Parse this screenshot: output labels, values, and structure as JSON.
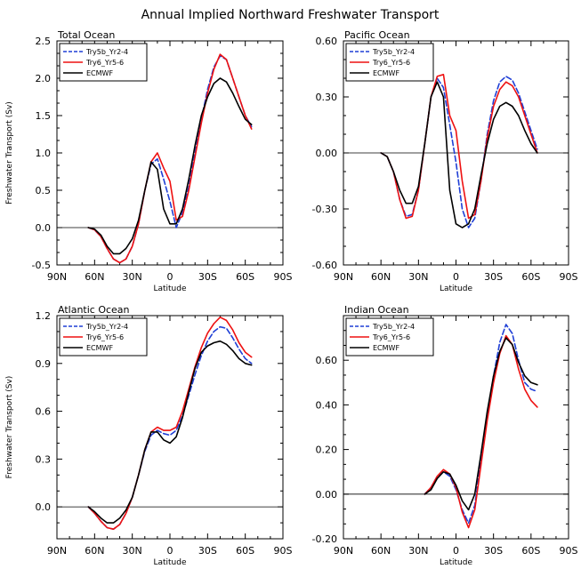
{
  "title": "Annual Implied Northward Freshwater Transport",
  "colors": {
    "Try5b_Yr2-4": "#1f3fd6",
    "Try6_Yr5-6": "#ee1111",
    "ECMWF": "#000000"
  },
  "chart_data": [
    {
      "type": "line",
      "title": "Total Ocean",
      "xlabel": "Latitude",
      "ylabel": "Freshwater Transport (Sv)",
      "xlim": [
        -90,
        90
      ],
      "ylim": [
        -0.5,
        2.5
      ],
      "x_ticks": [
        -90,
        -60,
        -30,
        0,
        30,
        60,
        90
      ],
      "x_tick_labels": [
        "90N",
        "60N",
        "30N",
        "0",
        "30S",
        "60S",
        "90S"
      ],
      "y_ticks": [
        -0.5,
        0.0,
        0.5,
        1.0,
        1.5,
        2.0,
        2.5
      ],
      "y_tick_labels": [
        "-0.5",
        "0.0",
        "0.5",
        "1.0",
        "1.5",
        "2.0",
        "2.5"
      ],
      "legend": [
        "Try5b_Yr2-4",
        "Try6_Yr5-6",
        "ECMWF"
      ],
      "series": [
        {
          "name": "Try5b_Yr2-4",
          "x": [
            -65,
            -60,
            -55,
            -50,
            -45,
            -40,
            -35,
            -30,
            -25,
            -20,
            -15,
            -10,
            -5,
            0,
            5,
            10,
            15,
            20,
            25,
            30,
            35,
            40,
            45,
            50,
            55,
            60,
            65
          ],
          "y": [
            0.0,
            -0.03,
            -0.12,
            -0.28,
            -0.42,
            -0.47,
            -0.42,
            -0.25,
            0.05,
            0.5,
            0.85,
            0.92,
            0.65,
            0.35,
            0.0,
            0.2,
            0.55,
            1.0,
            1.45,
            1.85,
            2.15,
            2.3,
            2.25,
            2.0,
            1.75,
            1.5,
            1.35
          ]
        },
        {
          "name": "Try6_Yr5-6",
          "x": [
            -65,
            -60,
            -55,
            -50,
            -45,
            -40,
            -35,
            -30,
            -25,
            -20,
            -15,
            -10,
            -5,
            0,
            5,
            10,
            15,
            20,
            25,
            30,
            35,
            40,
            45,
            50,
            55,
            60,
            65
          ],
          "y": [
            0.0,
            -0.03,
            -0.12,
            -0.28,
            -0.42,
            -0.47,
            -0.42,
            -0.25,
            0.05,
            0.5,
            0.88,
            1.0,
            0.8,
            0.62,
            0.1,
            0.15,
            0.5,
            0.95,
            1.4,
            1.8,
            2.12,
            2.32,
            2.25,
            2.0,
            1.75,
            1.5,
            1.32
          ]
        },
        {
          "name": "ECMWF",
          "x": [
            -65,
            -60,
            -55,
            -50,
            -45,
            -40,
            -35,
            -30,
            -25,
            -20,
            -15,
            -10,
            -5,
            0,
            5,
            10,
            15,
            20,
            25,
            30,
            35,
            40,
            45,
            50,
            55,
            60,
            65
          ],
          "y": [
            0.0,
            -0.02,
            -0.1,
            -0.25,
            -0.35,
            -0.35,
            -0.28,
            -0.15,
            0.1,
            0.5,
            0.88,
            0.78,
            0.25,
            0.05,
            0.05,
            0.25,
            0.65,
            1.1,
            1.5,
            1.75,
            1.93,
            2.0,
            1.95,
            1.8,
            1.62,
            1.45,
            1.38
          ]
        }
      ]
    },
    {
      "type": "line",
      "title": "Pacific Ocean",
      "xlabel": "Latitude",
      "ylabel": "",
      "xlim": [
        -90,
        90
      ],
      "ylim": [
        -0.6,
        0.6
      ],
      "x_ticks": [
        -90,
        -60,
        -30,
        0,
        30,
        60,
        90
      ],
      "x_tick_labels": [
        "90N",
        "60N",
        "30N",
        "0",
        "30S",
        "60S",
        "90S"
      ],
      "y_ticks": [
        -0.6,
        -0.3,
        0.0,
        0.3,
        0.6
      ],
      "y_tick_labels": [
        "-0.60",
        "-0.30",
        "0.00",
        "0.30",
        "0.60"
      ],
      "legend": [
        "Try5b_Yr2-4",
        "Try6_Yr5-6",
        "ECMWF"
      ],
      "series": [
        {
          "name": "Try5b_Yr2-4",
          "x": [
            -60,
            -55,
            -50,
            -45,
            -40,
            -35,
            -30,
            -25,
            -20,
            -15,
            -10,
            -5,
            0,
            5,
            10,
            15,
            20,
            25,
            30,
            35,
            40,
            45,
            50,
            55,
            60,
            65
          ],
          "y": [
            0.0,
            -0.02,
            -0.1,
            -0.25,
            -0.34,
            -0.33,
            -0.2,
            0.05,
            0.3,
            0.4,
            0.35,
            0.15,
            -0.05,
            -0.3,
            -0.4,
            -0.35,
            -0.15,
            0.1,
            0.28,
            0.38,
            0.41,
            0.39,
            0.32,
            0.22,
            0.12,
            0.02
          ]
        },
        {
          "name": "Try6_Yr5-6",
          "x": [
            -60,
            -55,
            -50,
            -45,
            -40,
            -35,
            -30,
            -25,
            -20,
            -15,
            -10,
            -5,
            0,
            5,
            10,
            15,
            20,
            25,
            30,
            35,
            40,
            45,
            50,
            55,
            60,
            65
          ],
          "y": [
            0.0,
            -0.02,
            -0.1,
            -0.25,
            -0.35,
            -0.34,
            -0.2,
            0.05,
            0.3,
            0.41,
            0.42,
            0.2,
            0.12,
            -0.15,
            -0.35,
            -0.33,
            -0.15,
            0.08,
            0.25,
            0.34,
            0.38,
            0.36,
            0.3,
            0.2,
            0.1,
            0.0
          ]
        },
        {
          "name": "ECMWF",
          "x": [
            -60,
            -55,
            -50,
            -45,
            -40,
            -35,
            -30,
            -25,
            -20,
            -15,
            -10,
            -5,
            0,
            5,
            10,
            15,
            20,
            25,
            30,
            35,
            40,
            45,
            50,
            55,
            60,
            65
          ],
          "y": [
            0.0,
            -0.02,
            -0.1,
            -0.2,
            -0.27,
            -0.27,
            -0.18,
            0.05,
            0.3,
            0.38,
            0.3,
            -0.2,
            -0.38,
            -0.4,
            -0.38,
            -0.3,
            -0.12,
            0.05,
            0.18,
            0.25,
            0.27,
            0.25,
            0.2,
            0.12,
            0.05,
            0.0
          ]
        }
      ]
    },
    {
      "type": "line",
      "title": "Atlantic Ocean",
      "xlabel": "Latitude",
      "ylabel": "Freshwater Transport (Sv)",
      "xlim": [
        -90,
        90
      ],
      "ylim": [
        -0.2,
        1.2
      ],
      "x_ticks": [
        -90,
        -60,
        -30,
        0,
        30,
        60,
        90
      ],
      "x_tick_labels": [
        "90N",
        "60N",
        "30N",
        "0",
        "30S",
        "60S",
        "90S"
      ],
      "y_ticks": [
        0.0,
        0.3,
        0.6,
        0.9,
        1.2
      ],
      "y_tick_labels": [
        "0.0",
        "0.3",
        "0.6",
        "0.9",
        "1.2"
      ],
      "legend": [
        "Try5b_Yr2-4",
        "Try6_Yr5-6",
        "ECMWF"
      ],
      "series": [
        {
          "name": "Try5b_Yr2-4",
          "x": [
            -65,
            -60,
            -55,
            -50,
            -45,
            -40,
            -35,
            -30,
            -25,
            -20,
            -15,
            -10,
            -5,
            0,
            5,
            10,
            15,
            20,
            25,
            30,
            35,
            40,
            45,
            50,
            55,
            60,
            65
          ],
          "y": [
            0.0,
            -0.04,
            -0.09,
            -0.13,
            -0.14,
            -0.11,
            -0.04,
            0.06,
            0.2,
            0.35,
            0.45,
            0.48,
            0.46,
            0.45,
            0.48,
            0.57,
            0.7,
            0.83,
            0.95,
            1.04,
            1.1,
            1.13,
            1.12,
            1.06,
            0.99,
            0.93,
            0.9
          ]
        },
        {
          "name": "Try6_Yr5-6",
          "x": [
            -65,
            -60,
            -55,
            -50,
            -45,
            -40,
            -35,
            -30,
            -25,
            -20,
            -15,
            -10,
            -5,
            0,
            5,
            10,
            15,
            20,
            25,
            30,
            35,
            40,
            45,
            50,
            55,
            60,
            65
          ],
          "y": [
            0.0,
            -0.04,
            -0.09,
            -0.13,
            -0.14,
            -0.11,
            -0.04,
            0.06,
            0.2,
            0.36,
            0.47,
            0.5,
            0.48,
            0.48,
            0.5,
            0.6,
            0.74,
            0.88,
            1.0,
            1.09,
            1.15,
            1.19,
            1.17,
            1.11,
            1.03,
            0.97,
            0.94
          ]
        },
        {
          "name": "ECMWF",
          "x": [
            -65,
            -60,
            -55,
            -50,
            -45,
            -40,
            -35,
            -30,
            -25,
            -20,
            -15,
            -10,
            -5,
            0,
            5,
            10,
            15,
            20,
            25,
            30,
            35,
            40,
            45,
            50,
            55,
            60,
            65
          ],
          "y": [
            0.0,
            -0.03,
            -0.07,
            -0.1,
            -0.1,
            -0.07,
            -0.02,
            0.06,
            0.2,
            0.36,
            0.47,
            0.47,
            0.42,
            0.4,
            0.44,
            0.56,
            0.72,
            0.87,
            0.97,
            1.01,
            1.03,
            1.04,
            1.02,
            0.98,
            0.93,
            0.9,
            0.89
          ]
        }
      ]
    },
    {
      "type": "line",
      "title": "Indian Ocean",
      "xlabel": "Latitude",
      "ylabel": "",
      "xlim": [
        -90,
        90
      ],
      "ylim": [
        -0.2,
        0.8
      ],
      "x_ticks": [
        -90,
        -60,
        -30,
        0,
        30,
        60,
        90
      ],
      "x_tick_labels": [
        "90N",
        "60N",
        "30N",
        "0",
        "30S",
        "60S",
        "90S"
      ],
      "y_ticks": [
        -0.2,
        0.0,
        0.2,
        0.4,
        0.6
      ],
      "y_tick_labels": [
        "-0.20",
        "0.00",
        "0.20",
        "0.40",
        "0.60"
      ],
      "legend": [
        "Try5b_Yr2-4",
        "Try6_Yr5-6",
        "ECMWF"
      ],
      "series": [
        {
          "name": "Try5b_Yr2-4",
          "x": [
            -25,
            -20,
            -15,
            -10,
            -5,
            0,
            5,
            10,
            15,
            20,
            25,
            30,
            35,
            40,
            45,
            50,
            55,
            60,
            65
          ],
          "y": [
            0.0,
            0.03,
            0.08,
            0.1,
            0.08,
            0.02,
            -0.07,
            -0.13,
            -0.05,
            0.15,
            0.35,
            0.53,
            0.68,
            0.76,
            0.72,
            0.6,
            0.5,
            0.47,
            0.46
          ]
        },
        {
          "name": "Try6_Yr5-6",
          "x": [
            -25,
            -20,
            -15,
            -10,
            -5,
            0,
            5,
            10,
            15,
            20,
            25,
            30,
            35,
            40,
            45,
            50,
            55,
            60,
            65
          ],
          "y": [
            0.0,
            0.03,
            0.08,
            0.11,
            0.09,
            0.03,
            -0.08,
            -0.15,
            -0.07,
            0.13,
            0.33,
            0.5,
            0.63,
            0.71,
            0.67,
            0.56,
            0.47,
            0.42,
            0.39
          ]
        },
        {
          "name": "ECMWF",
          "x": [
            -25,
            -20,
            -15,
            -10,
            -5,
            0,
            5,
            10,
            15,
            20,
            25,
            30,
            35,
            40,
            45,
            50,
            55,
            60,
            65
          ],
          "y": [
            0.0,
            0.02,
            0.07,
            0.1,
            0.09,
            0.04,
            -0.03,
            -0.07,
            0.0,
            0.18,
            0.37,
            0.53,
            0.64,
            0.7,
            0.67,
            0.59,
            0.53,
            0.5,
            0.49
          ]
        }
      ]
    }
  ]
}
